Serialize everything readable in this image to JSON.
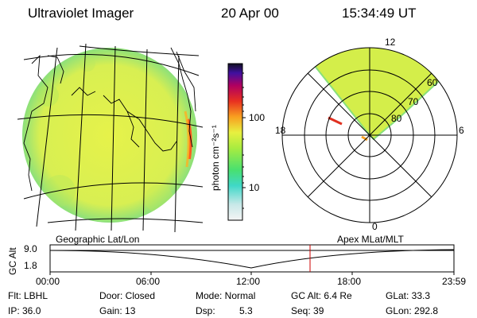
{
  "header": {
    "title": "Ultraviolet Imager",
    "date": "20 Apr 00",
    "time": "15:34:49 UT"
  },
  "colorbar": {
    "unit_label": "photon cm⁻²s⁻¹",
    "ticks": [
      "100",
      "10"
    ]
  },
  "polar": {
    "mlt_labels": [
      "12",
      "18",
      "6",
      "0"
    ],
    "lat_labels": [
      "60",
      "70",
      "80"
    ]
  },
  "timeline": {
    "left_label": "Geographic Lat/Lon",
    "right_label": "Apex MLat/MLT",
    "axis_label": "GC Alt",
    "y_ticks": [
      "9.0",
      "1.8"
    ],
    "x_ticks": [
      "00:00",
      "06:00",
      "12:00",
      "18:00",
      "23:59"
    ],
    "current_time_marker": "15:34:49"
  },
  "info": {
    "row1": {
      "flt": "Flt: LBHL",
      "door": "Door: Closed",
      "mode": "Mode: Normal",
      "gc_alt": "GC Alt: 6.4 Re",
      "glat": "GLat:  33.3"
    },
    "row2": {
      "ip": "IP: 36.0",
      "gain": "Gain: 13",
      "dsp_label": "Dsp:",
      "dsp_value": "5.3",
      "seq": "Seq: 39",
      "glon": "GLon: 292.8"
    }
  },
  "colors": {
    "disk_main": "#d8f04a",
    "disk_edge": "#7fe07a",
    "lines": "#000000",
    "marker": "#cc0000"
  }
}
